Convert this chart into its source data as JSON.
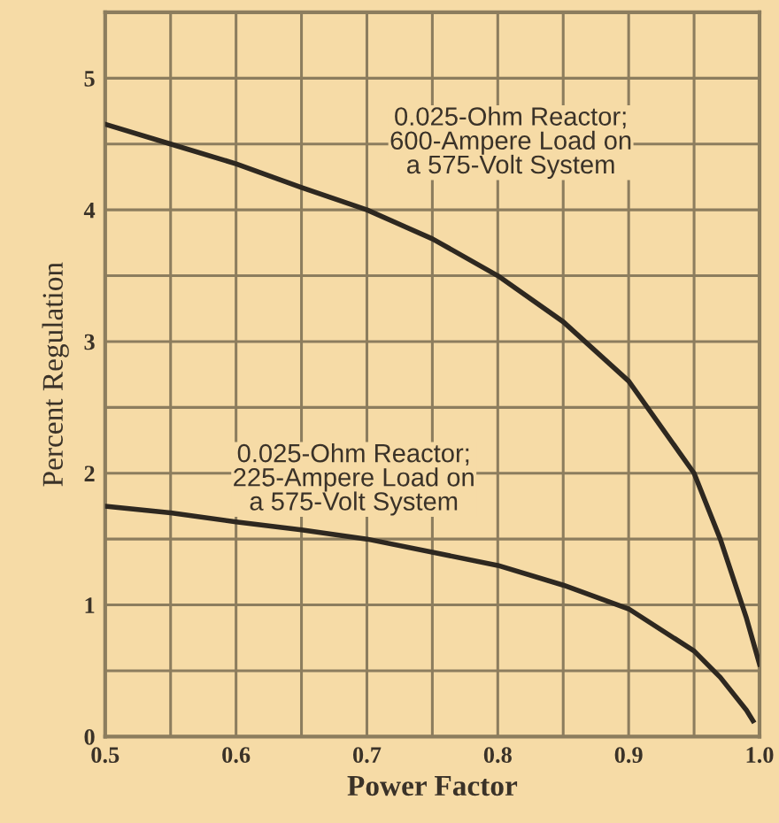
{
  "chart_data": {
    "type": "line",
    "xlabel": "Power Factor",
    "ylabel": "Percent Regulation",
    "xlim": [
      0.5,
      1.0
    ],
    "ylim": [
      0,
      5.5
    ],
    "xticks": [
      {
        "value": 0.5,
        "label": "0.5"
      },
      {
        "value": 0.55,
        "label": null
      },
      {
        "value": 0.6,
        "label": "0.6"
      },
      {
        "value": 0.65,
        "label": null
      },
      {
        "value": 0.7,
        "label": "0.7"
      },
      {
        "value": 0.75,
        "label": null
      },
      {
        "value": 0.8,
        "label": "0.8"
      },
      {
        "value": 0.85,
        "label": null
      },
      {
        "value": 0.9,
        "label": "0.9"
      },
      {
        "value": 0.95,
        "label": null
      },
      {
        "value": 1.0,
        "label": "1.0"
      }
    ],
    "yticks": [
      0,
      {
        "value": 0.5,
        "label": null
      },
      1,
      {
        "value": 1.5,
        "label": null
      },
      2,
      {
        "value": 2.5,
        "label": null
      },
      3,
      {
        "value": 3.5,
        "label": null
      },
      4,
      {
        "value": 4.5,
        "label": null
      },
      5
    ],
    "grid": true,
    "marker": "none",
    "line_style": "solid",
    "series": [
      {
        "color": "#2e2820",
        "x": [
          0.5,
          0.55,
          0.6,
          0.65,
          0.7,
          0.75,
          0.8,
          0.85,
          0.9,
          0.95,
          0.97,
          0.99,
          1.0
        ],
        "values": [
          4.65,
          4.5,
          4.35,
          4.17,
          4.0,
          3.78,
          3.5,
          3.15,
          2.7,
          2.0,
          1.5,
          0.9,
          0.55
        ]
      },
      {
        "color": "#2e2820",
        "x": [
          0.5,
          0.55,
          0.6,
          0.65,
          0.7,
          0.75,
          0.8,
          0.85,
          0.9,
          0.95,
          0.97,
          0.99,
          0.995
        ],
        "values": [
          1.75,
          1.7,
          1.63,
          1.57,
          1.5,
          1.4,
          1.3,
          1.15,
          0.97,
          0.65,
          0.45,
          0.2,
          0.12
        ]
      }
    ],
    "annotations": [
      "0.025-Ohm Reactor;\n600-Ampere Load on\na 575-Volt System",
      "0.025-Ohm Reactor;\n225-Ampere Load on\na 575-Volt System"
    ]
  }
}
